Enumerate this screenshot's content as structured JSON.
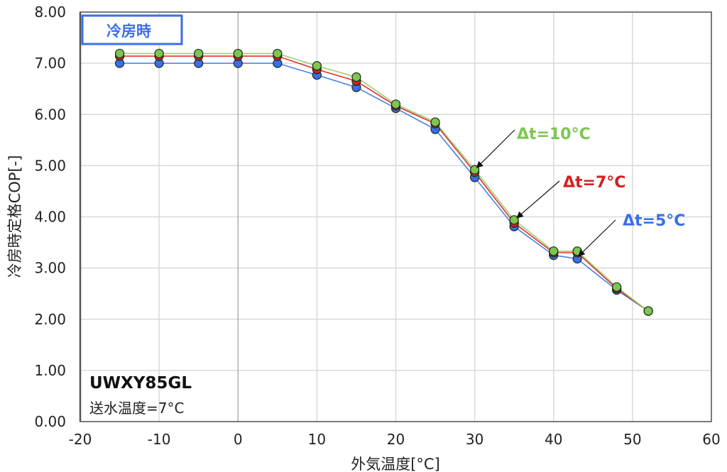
{
  "chart_data": {
    "type": "line",
    "title": "冷房時",
    "xlabel": "外気温度[°C]",
    "ylabel": "冷房時定格COP[-]",
    "xlim": [
      -20,
      60
    ],
    "ylim": [
      0,
      8
    ],
    "grid": true,
    "xticks": [
      "-20",
      "-10",
      "0",
      "10",
      "20",
      "30",
      "40",
      "50",
      "60"
    ],
    "yticks": [
      "0.00",
      "1.00",
      "2.00",
      "3.00",
      "4.00",
      "5.00",
      "6.00",
      "7.00",
      "8.00"
    ],
    "x": [
      -15,
      -10,
      -5,
      0,
      5,
      10,
      15,
      20,
      25,
      30,
      35,
      40,
      43,
      48,
      52
    ],
    "series": [
      {
        "name": "Δt=5°C",
        "color": "#3a6fe8",
        "line": "#4a80e0",
        "values": [
          7.0,
          7.0,
          7.0,
          7.0,
          7.0,
          6.77,
          6.53,
          6.12,
          5.71,
          4.77,
          3.81,
          3.25,
          3.18,
          2.57,
          2.16
        ]
      },
      {
        "name": "Δt=7°C",
        "color": "#d81e1e",
        "line": "#e0302a",
        "values": [
          7.14,
          7.14,
          7.14,
          7.14,
          7.14,
          6.88,
          6.65,
          6.17,
          5.82,
          4.87,
          3.88,
          3.3,
          3.3,
          2.6,
          2.16
        ]
      },
      {
        "name": "Δt=10°C",
        "color": "#7dc650",
        "line": "#9ccf70",
        "values": [
          7.19,
          7.19,
          7.19,
          7.19,
          7.19,
          6.95,
          6.73,
          6.2,
          5.85,
          4.92,
          3.94,
          3.33,
          3.33,
          2.63,
          2.16
        ]
      }
    ],
    "annotations": {
      "model": "UWXY85GL",
      "condition": "送水温度=7°C"
    }
  }
}
